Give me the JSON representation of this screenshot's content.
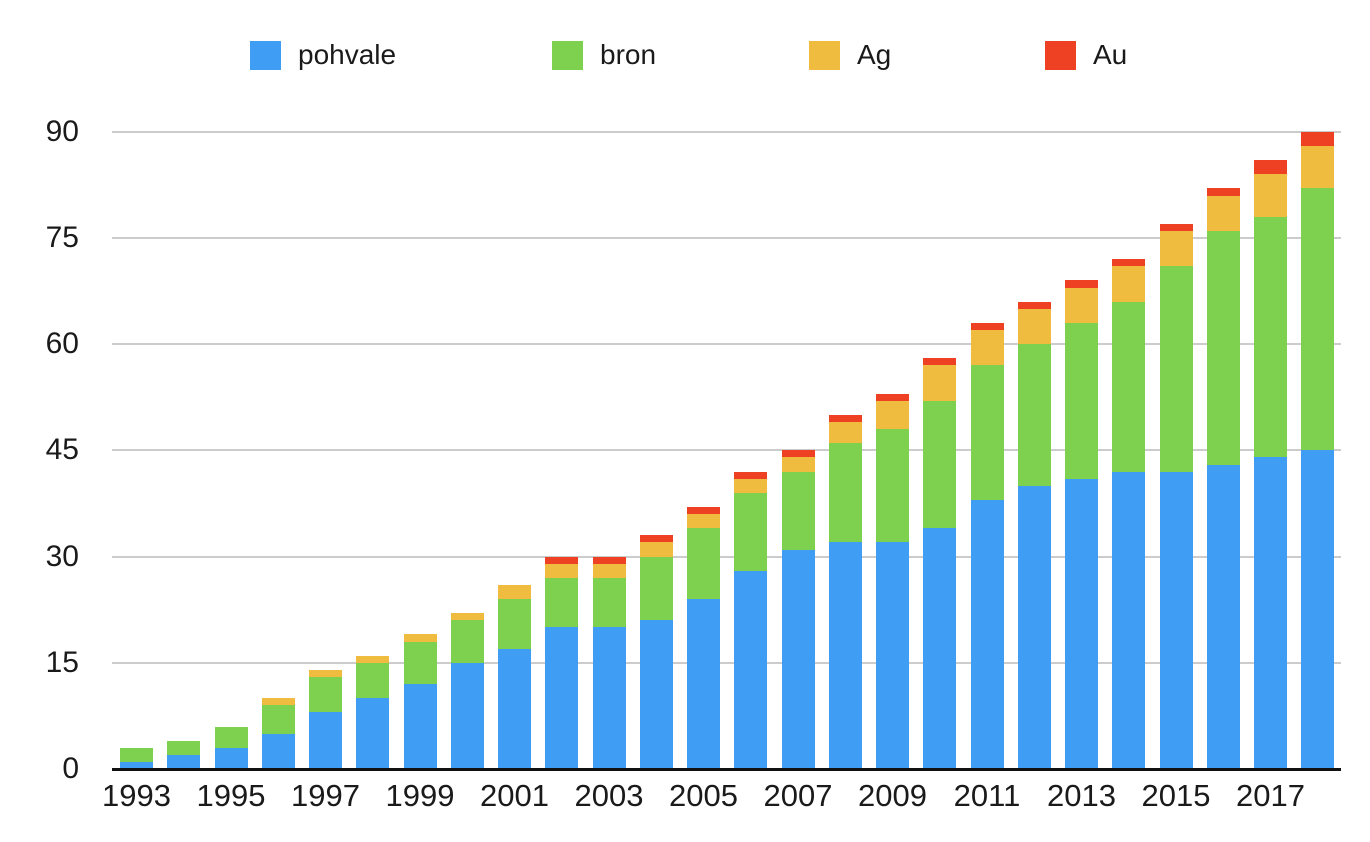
{
  "legend": {
    "position": "top",
    "items": [
      {
        "label": "pohvale",
        "color": "#3f9ef3",
        "x": 250
      },
      {
        "label": "bron",
        "color": "#7ed04f",
        "x": 552
      },
      {
        "label": "Ag",
        "color": "#efbc3f",
        "x": 809
      },
      {
        "label": "Au",
        "color": "#ee4023",
        "x": 1045
      }
    ]
  },
  "axes": {
    "y_ticks": [
      0,
      15,
      30,
      45,
      60,
      75,
      90
    ],
    "x_tick_labels": [
      "1993",
      "1995",
      "1997",
      "1999",
      "2001",
      "2003",
      "2005",
      "2007",
      "2009",
      "2011",
      "2013",
      "2015",
      "2017"
    ],
    "grid_color": "#cccccc",
    "axis_color": "#111111",
    "text_color": "#1a1a1a"
  },
  "chart_data": {
    "type": "bar",
    "stacked": true,
    "title": "",
    "xlabel": "",
    "ylabel": "",
    "ylim": [
      0,
      90
    ],
    "grid": true,
    "legend_position": "top",
    "categories": [
      1993,
      1994,
      1995,
      1996,
      1997,
      1998,
      1999,
      2000,
      2001,
      2002,
      2003,
      2004,
      2005,
      2006,
      2007,
      2008,
      2009,
      2010,
      2011,
      2012,
      2013,
      2014,
      2015,
      2016,
      2017,
      2018
    ],
    "series": [
      {
        "name": "pohvale",
        "color": "#3f9ef3",
        "values": [
          1,
          2,
          3,
          5,
          8,
          10,
          12,
          15,
          17,
          20,
          20,
          21,
          24,
          28,
          31,
          32,
          32,
          34,
          38,
          40,
          41,
          42,
          42,
          43,
          44,
          45
        ]
      },
      {
        "name": "bron",
        "color": "#7ed04f",
        "values": [
          2,
          2,
          3,
          4,
          5,
          5,
          6,
          6,
          7,
          7,
          7,
          9,
          10,
          11,
          11,
          14,
          16,
          18,
          19,
          20,
          22,
          24,
          29,
          33,
          34,
          37
        ]
      },
      {
        "name": "Ag",
        "color": "#efbc3f",
        "values": [
          0,
          0,
          0,
          1,
          1,
          1,
          1,
          1,
          2,
          2,
          2,
          2,
          2,
          2,
          2,
          3,
          4,
          5,
          5,
          5,
          5,
          5,
          5,
          5,
          6,
          6
        ]
      },
      {
        "name": "Au",
        "color": "#ee4023",
        "values": [
          0,
          0,
          0,
          0,
          0,
          0,
          0,
          0,
          0,
          1,
          1,
          1,
          1,
          1,
          1,
          1,
          1,
          1,
          1,
          1,
          1,
          1,
          1,
          1,
          2,
          2
        ]
      }
    ],
    "totals": [
      3,
      4,
      6,
      10,
      14,
      16,
      19,
      22,
      26,
      30,
      30,
      33,
      37,
      42,
      45,
      50,
      53,
      58,
      63,
      66,
      69,
      72,
      77,
      82,
      86,
      90
    ]
  }
}
